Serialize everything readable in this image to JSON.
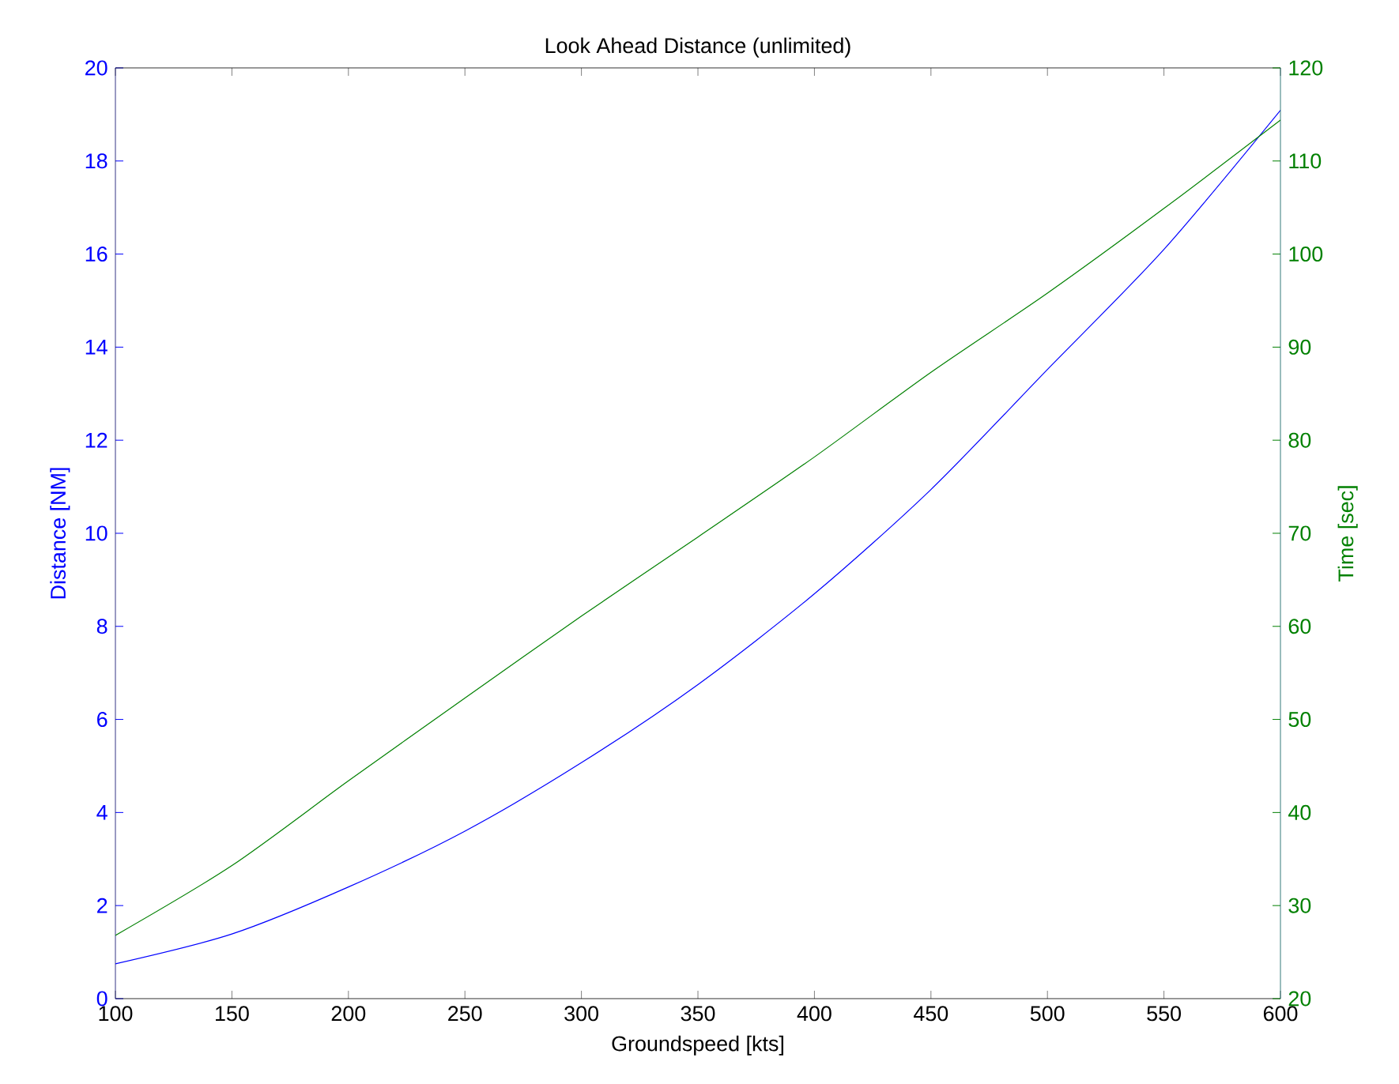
{
  "chart_data": {
    "type": "line",
    "title": "Look Ahead Distance (unlimited)",
    "xlabel": "Groundspeed [kts]",
    "ylabel": "Distance [NM]",
    "y2label": "Time [sec]",
    "x": [
      100,
      150,
      200,
      250,
      300,
      350,
      400,
      450,
      500,
      550,
      600
    ],
    "series": [
      {
        "color": "#0000ff",
        "values": [
          0.75,
          1.39,
          2.4,
          3.6,
          5.07,
          6.75,
          8.7,
          10.94,
          13.52,
          16.1,
          19.09
        ]
      },
      {
        "color": "#008000",
        "axis": "y2",
        "values": [
          26.8,
          34.3,
          43.4,
          52.3,
          61.1,
          69.6,
          78.2,
          87.3,
          95.8,
          104.9,
          114.4
        ]
      }
    ],
    "xlim": [
      100,
      600
    ],
    "xticks": [
      100,
      150,
      200,
      250,
      300,
      350,
      400,
      450,
      500,
      550,
      600
    ],
    "ylim": [
      0,
      20
    ],
    "yticks": [
      0,
      2,
      4,
      6,
      8,
      10,
      12,
      14,
      16,
      18,
      20
    ],
    "y2lim": [
      20,
      120
    ],
    "y2ticks": [
      20,
      30,
      40,
      50,
      60,
      70,
      80,
      90,
      100,
      110,
      120
    ]
  }
}
